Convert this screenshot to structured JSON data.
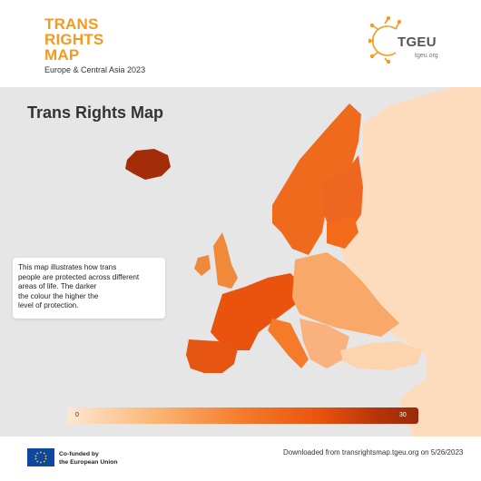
{
  "brand": {
    "title_lines": [
      "TRANS",
      "RIGHTS",
      "MAP"
    ],
    "subtitle": "Europe & Central Asia 2023",
    "logo_name": "TGEU",
    "logo_url": "tgeu.org"
  },
  "map": {
    "title": "Trans Rights Map",
    "description_lines": [
      "This map illustrates how trans",
      "people are protected across different",
      "areas of life. The darker",
      "the colour the higher the",
      "level of protection."
    ],
    "icons": [
      "tgeu-logo-icon",
      "eu-flag-icon"
    ]
  },
  "legend": {
    "min_label": "0",
    "max_label": "30",
    "colors": [
      "#fde7d2",
      "#fbb676",
      "#f47b2a",
      "#e9530e",
      "#9a2a07"
    ]
  },
  "footer": {
    "eu_line1": "Co-funded by",
    "eu_line2": "the European Union",
    "download_text": "Downloaded from transrightsmap.tgeu.org on 5/26/2023"
  },
  "colors": {
    "brand_orange": "#f39a1f",
    "ocean": "#e6e6e6",
    "eu_blue": "#0e47a1"
  }
}
